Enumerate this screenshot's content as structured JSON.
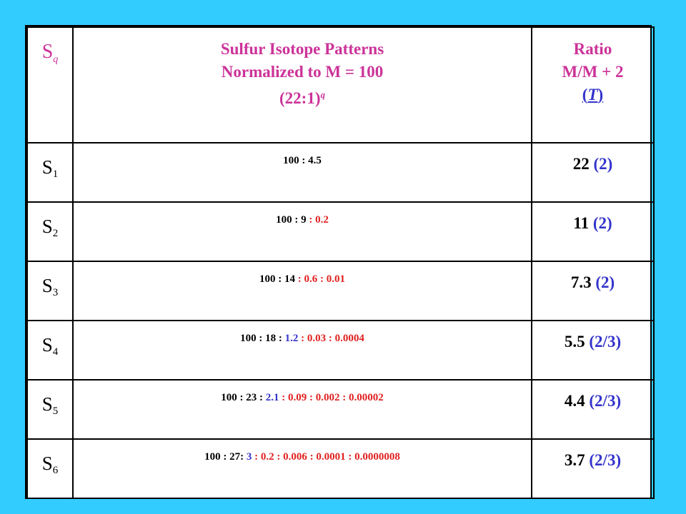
{
  "header": {
    "col1": {
      "symbol": "S",
      "sub": "q"
    },
    "col2": {
      "line1": "Sulfur Isotope  Patterns",
      "line2": "Normalized  to M = 100",
      "line3": "(22:1)",
      "line3_sup": "q"
    },
    "col3": {
      "line1": "Ratio",
      "line2": "M/M + 2",
      "line3_open": "(",
      "line3_t": "T",
      "line3_close": ")"
    }
  },
  "rows": [
    {
      "s": "S",
      "sub": "1",
      "p_black": "100 : 4.5",
      "p_blue": "",
      "p_red": "",
      "ratio": "22",
      "ratio_tag": "(2)"
    },
    {
      "s": "S",
      "sub": "2",
      "p_black": "100 : 9",
      "p_blue": "",
      "p_red": " : 0.2",
      "ratio": "11",
      "ratio_tag": "(2)"
    },
    {
      "s": "S",
      "sub": "3",
      "p_black": "100 : 14",
      "p_blue": "",
      "p_red": " : 0.6 : 0.01",
      "ratio": "7.3",
      "ratio_tag": "(2)"
    },
    {
      "s": "S",
      "sub": "4",
      "p_black": "100 : 18 : ",
      "p_blue": "1.2",
      "p_red": " : 0.03 : 0.0004",
      "ratio": "5.5",
      "ratio_tag": "(2/3)"
    },
    {
      "s": "S",
      "sub": "5",
      "p_black": "100 : 23 : ",
      "p_blue": "2.1",
      "p_red": " : 0.09 : 0.002 : 0.00002",
      "ratio": "4.4",
      "ratio_tag": "(2/3)"
    },
    {
      "s": "S",
      "sub": "6",
      "p_black": "100 : 27: ",
      "p_blue": "3",
      "p_red": " : 0.2 : 0.006 : 0.0001 : 0.0000008",
      "ratio": "3.7",
      "ratio_tag": "(2/3)"
    }
  ],
  "colors": {
    "background": "#33CCFF",
    "header_text": "#CC3399",
    "blue": "#3333CC",
    "red": "#E02020"
  }
}
